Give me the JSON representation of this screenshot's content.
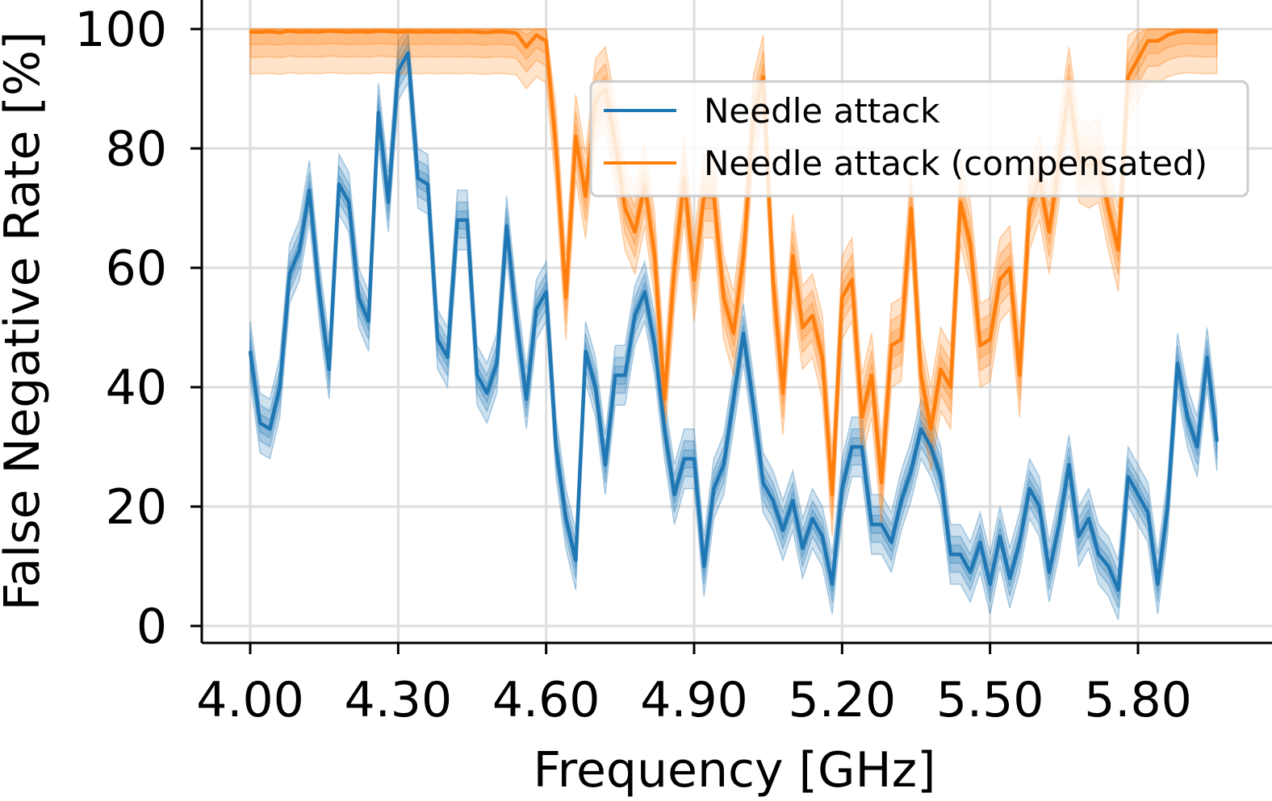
{
  "chart_data": {
    "type": "line",
    "xlabel": "Frequency [GHz]",
    "ylabel": "False Negative Rate [%]",
    "xlim": [
      3.95,
      6.0
    ],
    "ylim": [
      -3,
      103
    ],
    "xticks": [
      4.0,
      4.3,
      4.6,
      4.9,
      5.2,
      5.5,
      5.8
    ],
    "xtick_labels": [
      "4.00",
      "4.30",
      "4.60",
      "4.90",
      "5.20",
      "5.50",
      "5.80"
    ],
    "yticks": [
      0,
      20,
      40,
      60,
      80,
      100
    ],
    "ytick_labels": [
      "0",
      "20",
      "40",
      "60",
      "80",
      "100"
    ],
    "grid": true,
    "legend_position": "top-right",
    "x": [
      4.0,
      4.02,
      4.04,
      4.06,
      4.08,
      4.1,
      4.12,
      4.14,
      4.16,
      4.18,
      4.2,
      4.22,
      4.24,
      4.26,
      4.28,
      4.3,
      4.32,
      4.34,
      4.36,
      4.38,
      4.4,
      4.42,
      4.44,
      4.46,
      4.48,
      4.5,
      4.52,
      4.54,
      4.56,
      4.58,
      4.6,
      4.62,
      4.64,
      4.66,
      4.68,
      4.7,
      4.72,
      4.74,
      4.76,
      4.78,
      4.8,
      4.82,
      4.84,
      4.86,
      4.88,
      4.9,
      4.92,
      4.94,
      4.96,
      4.98,
      5.0,
      5.02,
      5.04,
      5.06,
      5.08,
      5.1,
      5.12,
      5.14,
      5.16,
      5.18,
      5.2,
      5.22,
      5.24,
      5.26,
      5.28,
      5.3,
      5.32,
      5.34,
      5.36,
      5.38,
      5.4,
      5.42,
      5.44,
      5.46,
      5.48,
      5.5,
      5.52,
      5.54,
      5.56,
      5.58,
      5.6,
      5.62,
      5.64,
      5.66,
      5.68,
      5.7,
      5.72,
      5.74,
      5.76,
      5.78,
      5.8,
      5.82,
      5.84,
      5.86,
      5.88,
      5.9,
      5.92,
      5.94,
      5.96
    ],
    "series": [
      {
        "name": "Needle attack",
        "color": "#1f77b4",
        "values": [
          46,
          34,
          33,
          40,
          59,
          63,
          73,
          56,
          43,
          74,
          71,
          55,
          51,
          86,
          71,
          93,
          96,
          75,
          74,
          48,
          45,
          68,
          68,
          42,
          39,
          44,
          67,
          51,
          38,
          53,
          56,
          30,
          18,
          11,
          46,
          40,
          27,
          42,
          42,
          52,
          56,
          47,
          33,
          22,
          28,
          28,
          10,
          23,
          27,
          38,
          49,
          37,
          24,
          21,
          16,
          21,
          13,
          18,
          15,
          7,
          23,
          30,
          30,
          17,
          17,
          14,
          21,
          26,
          33,
          30,
          25,
          12,
          12,
          9,
          14,
          7,
          15,
          8,
          14,
          23,
          20,
          9,
          17,
          27,
          15,
          18,
          12,
          10,
          6,
          25,
          22,
          19,
          7,
          20,
          44,
          35,
          30,
          45,
          31
        ],
        "band": 5
      },
      {
        "name": "Needle attack (compensated)",
        "color": "#ff7f0e",
        "values": [
          99.5,
          99.5,
          99.6,
          99.4,
          99.7,
          99.5,
          99.6,
          99.5,
          99.7,
          99.6,
          99.5,
          99.6,
          99.5,
          99.7,
          99.6,
          99.5,
          99.6,
          99.5,
          99.6,
          99.5,
          99.6,
          99.5,
          99.6,
          99.5,
          99.4,
          99.6,
          99.5,
          99.3,
          97,
          99,
          98,
          80,
          55,
          82,
          72,
          88,
          90,
          81,
          70,
          66,
          74,
          62,
          38,
          60,
          75,
          58,
          72,
          72,
          55,
          49,
          62,
          85,
          92,
          58,
          39,
          62,
          50,
          52,
          45,
          22,
          55,
          58,
          35,
          42,
          24,
          47,
          48,
          70,
          42,
          33,
          43,
          40,
          71,
          64,
          47,
          48,
          58,
          60,
          42,
          70,
          75,
          66,
          78,
          90,
          78,
          77,
          78,
          70,
          63,
          92,
          95,
          98,
          98,
          99,
          99.5,
          99.7,
          99.6,
          99.5,
          99.6
        ],
        "band": 7
      }
    ]
  }
}
